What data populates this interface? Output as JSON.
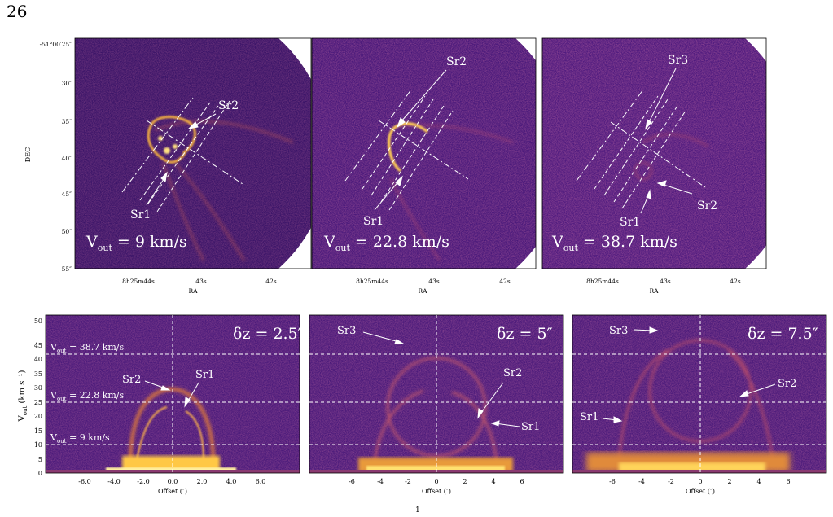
{
  "page_number": "26",
  "footer_mark": "1",
  "top_panels": [
    {
      "id": "p1",
      "vout_label": "V",
      "vout_sub": "out",
      "vout_value": " = 9 km/s",
      "labels": [
        {
          "text": "Sr2"
        },
        {
          "text": "Sr1"
        }
      ],
      "dec_ticks": [
        "-51°00′25″",
        "30″",
        "35″",
        "40″",
        "45″",
        "50″",
        "55″"
      ],
      "ra_ticks": [
        "8h25m44s",
        "43s",
        "42s"
      ],
      "ylabel": "DEC",
      "xlabel": "RA"
    },
    {
      "id": "p2",
      "vout_label": "V",
      "vout_sub": "out",
      "vout_value": " = 22.8 km/s",
      "labels": [
        {
          "text": "Sr2"
        },
        {
          "text": "Sr1"
        }
      ],
      "ra_ticks": [
        "8h25m44s",
        "43s",
        "42s"
      ],
      "xlabel": "RA"
    },
    {
      "id": "p3",
      "vout_label": "V",
      "vout_sub": "out",
      "vout_value": " = 38.7 km/s",
      "labels": [
        {
          "text": "Sr3"
        },
        {
          "text": "Sr2"
        },
        {
          "text": "Sr1"
        }
      ],
      "ra_ticks": [
        "8h25m44s",
        "43s",
        "42s"
      ],
      "xlabel": "RA"
    }
  ],
  "bottom_panels": [
    {
      "id": "b1",
      "dz": "δz = 2.5″",
      "x_ticks": [
        "-6.0",
        "-4.0",
        "-2.0",
        "0.0",
        "2.0",
        "4.0",
        "6.0"
      ],
      "hlines": [
        "V",
        "V",
        "V"
      ],
      "hline_values": [
        " = 38.7 km/s",
        " = 22.8 km/s",
        " = 9 km/s"
      ],
      "hline_sub": "out",
      "labels": [
        "Sr2",
        "Sr1"
      ],
      "xlabel": "Offset (″)",
      "ylabel": "V",
      "ylabel_sub": "out",
      "ylabel_unit": " (km s⁻¹)",
      "y_ticks": [
        "0",
        "5",
        "10",
        "15",
        "20",
        "25",
        "30",
        "35",
        "40",
        "45",
        "50"
      ]
    },
    {
      "id": "b2",
      "dz": "δz = 5″",
      "x_ticks": [
        "-6",
        "-4",
        "-2",
        "0",
        "2",
        "4",
        "6"
      ],
      "labels": [
        "Sr3",
        "Sr2",
        "Sr1"
      ],
      "xlabel": "Offset (″)"
    },
    {
      "id": "b3",
      "dz": "δz = 7.5″",
      "x_ticks": [
        "-6",
        "-4",
        "-2",
        "0",
        "2",
        "4",
        "6"
      ],
      "labels": [
        "Sr3",
        "Sr2",
        "Sr1"
      ],
      "xlabel": "Offset (″)"
    }
  ],
  "colors": {
    "background": "#3a1468",
    "noise": "#7a2a78",
    "emission": "#f5c040",
    "hot": "#fff3a0"
  }
}
